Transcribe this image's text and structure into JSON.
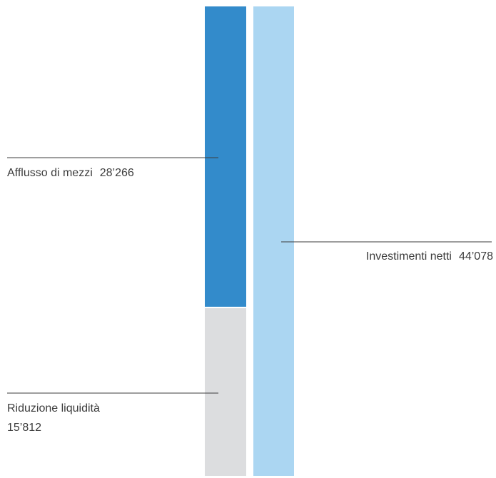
{
  "chart_data": {
    "type": "bar",
    "stacked": true,
    "categories": [
      "",
      ""
    ],
    "series": [
      {
        "label": "Afflusso di mezzi",
        "value_label": "28’266",
        "value": 28266,
        "stack": 0,
        "color": "#338BCB"
      },
      {
        "label": "Riduzione liquidità",
        "value_label": "15’812",
        "value": 15812,
        "stack": 0,
        "color": "#DCDDDF"
      },
      {
        "label": "Investimenti netti",
        "value_label": "44’078",
        "value": 44078,
        "stack": 1,
        "color": "#ABD6F2"
      }
    ],
    "title": "",
    "xlabel": "",
    "ylabel": "",
    "ylim": [
      0,
      44078
    ],
    "grid": false
  }
}
